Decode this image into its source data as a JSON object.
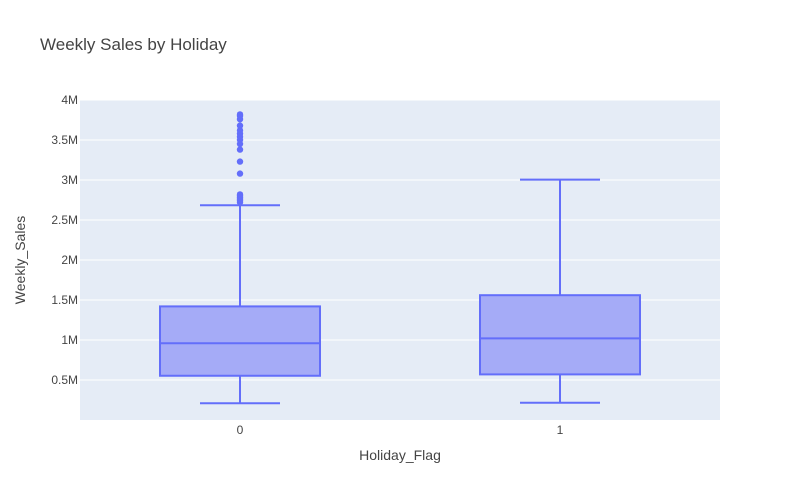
{
  "chart_data": {
    "type": "box",
    "title": "Weekly Sales by Holiday",
    "xlabel": "Holiday_Flag",
    "ylabel": "Weekly_Sales",
    "ylim": [
      0,
      4000000
    ],
    "y_ticks": [
      {
        "value": 500000,
        "label": "0.5M"
      },
      {
        "value": 1000000,
        "label": "1M"
      },
      {
        "value": 1500000,
        "label": "1.5M"
      },
      {
        "value": 2000000,
        "label": "2M"
      },
      {
        "value": 2500000,
        "label": "2.5M"
      },
      {
        "value": 3000000,
        "label": "3M"
      },
      {
        "value": 3500000,
        "label": "3.5M"
      },
      {
        "value": 4000000,
        "label": "4M"
      }
    ],
    "grid": true,
    "colors": {
      "plot_bg": "#e5ecf6",
      "grid": "#ffffff",
      "box_line": "#636efa",
      "box_fill": "#a5abf7",
      "text": "#444444"
    },
    "boxes": [
      {
        "category": "0",
        "lowerfence": 210000,
        "q1": 553000,
        "median": 960000,
        "q3": 1420000,
        "upperfence": 2685000,
        "outliers": [
          2720000,
          2740000,
          2760000,
          2780000,
          2800000,
          2820000,
          3080000,
          3230000,
          3380000,
          3450000,
          3500000,
          3540000,
          3580000,
          3620000,
          3680000,
          3760000,
          3800000,
          3820000
        ]
      },
      {
        "category": "1",
        "lowerfence": 215000,
        "q1": 570000,
        "median": 1020000,
        "q3": 1560000,
        "upperfence": 3005000,
        "outliers": []
      }
    ]
  }
}
